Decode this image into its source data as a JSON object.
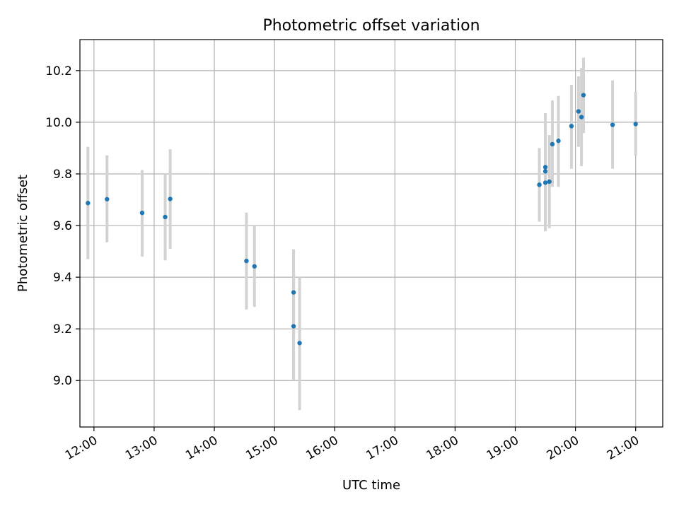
{
  "chart_data": {
    "type": "scatter",
    "title": "Photometric offset variation",
    "xlabel": "UTC time",
    "ylabel": "Photometric offset",
    "x_ticks": [
      "12:00",
      "13:00",
      "14:00",
      "15:00",
      "16:00",
      "17:00",
      "18:00",
      "19:00",
      "20:00",
      "21:00"
    ],
    "y_ticks": [
      "9.0",
      "9.2",
      "9.4",
      "9.6",
      "9.8",
      "10.0",
      "10.2"
    ],
    "xlim": [
      "11:46",
      "21:27"
    ],
    "ylim": [
      8.82,
      10.32
    ],
    "grid": true,
    "point_color": "#1f77b4",
    "errorbar_color": "#d3d3d3",
    "points": [
      {
        "x": "11:54",
        "y": 9.687,
        "err_low": 9.47,
        "err_high": 9.905
      },
      {
        "x": "12:13",
        "y": 9.702,
        "err_low": 9.535,
        "err_high": 9.872
      },
      {
        "x": "12:48",
        "y": 9.649,
        "err_low": 9.48,
        "err_high": 9.815
      },
      {
        "x": "13:11",
        "y": 9.633,
        "err_low": 9.465,
        "err_high": 9.8
      },
      {
        "x": "13:16",
        "y": 9.703,
        "err_low": 9.51,
        "err_high": 9.895
      },
      {
        "x": "14:32",
        "y": 9.463,
        "err_low": 9.275,
        "err_high": 9.65
      },
      {
        "x": "14:40",
        "y": 9.442,
        "err_low": 9.285,
        "err_high": 9.6
      },
      {
        "x": "15:19",
        "y": 9.341,
        "err_low": 9.175,
        "err_high": 9.508
      },
      {
        "x": "15:19",
        "y": 9.21,
        "err_low": 9.0,
        "err_high": 9.42
      },
      {
        "x": "15:25",
        "y": 9.145,
        "err_low": 8.885,
        "err_high": 9.4
      },
      {
        "x": "19:24",
        "y": 9.758,
        "err_low": 9.615,
        "err_high": 9.9
      },
      {
        "x": "19:30",
        "y": 9.826,
        "err_low": 9.578,
        "err_high": 10.035
      },
      {
        "x": "19:30",
        "y": 9.81,
        "err_low": 9.58,
        "err_high": 10.035
      },
      {
        "x": "19:30",
        "y": 9.766,
        "err_low": 9.585,
        "err_high": 9.96
      },
      {
        "x": "19:34",
        "y": 9.77,
        "err_low": 9.59,
        "err_high": 9.95
      },
      {
        "x": "19:37",
        "y": 9.915,
        "err_low": 9.75,
        "err_high": 10.085
      },
      {
        "x": "19:43",
        "y": 9.928,
        "err_low": 9.75,
        "err_high": 10.102
      },
      {
        "x": "19:56",
        "y": 9.985,
        "err_low": 9.82,
        "err_high": 10.145
      },
      {
        "x": "20:03",
        "y": 10.042,
        "err_low": 9.905,
        "err_high": 10.178
      },
      {
        "x": "20:06",
        "y": 10.02,
        "err_low": 9.83,
        "err_high": 10.21
      },
      {
        "x": "20:08",
        "y": 10.105,
        "err_low": 9.958,
        "err_high": 10.25
      },
      {
        "x": "20:37",
        "y": 9.99,
        "err_low": 9.82,
        "err_high": 10.162
      },
      {
        "x": "21:00",
        "y": 9.993,
        "err_low": 9.87,
        "err_high": 10.118
      }
    ]
  }
}
